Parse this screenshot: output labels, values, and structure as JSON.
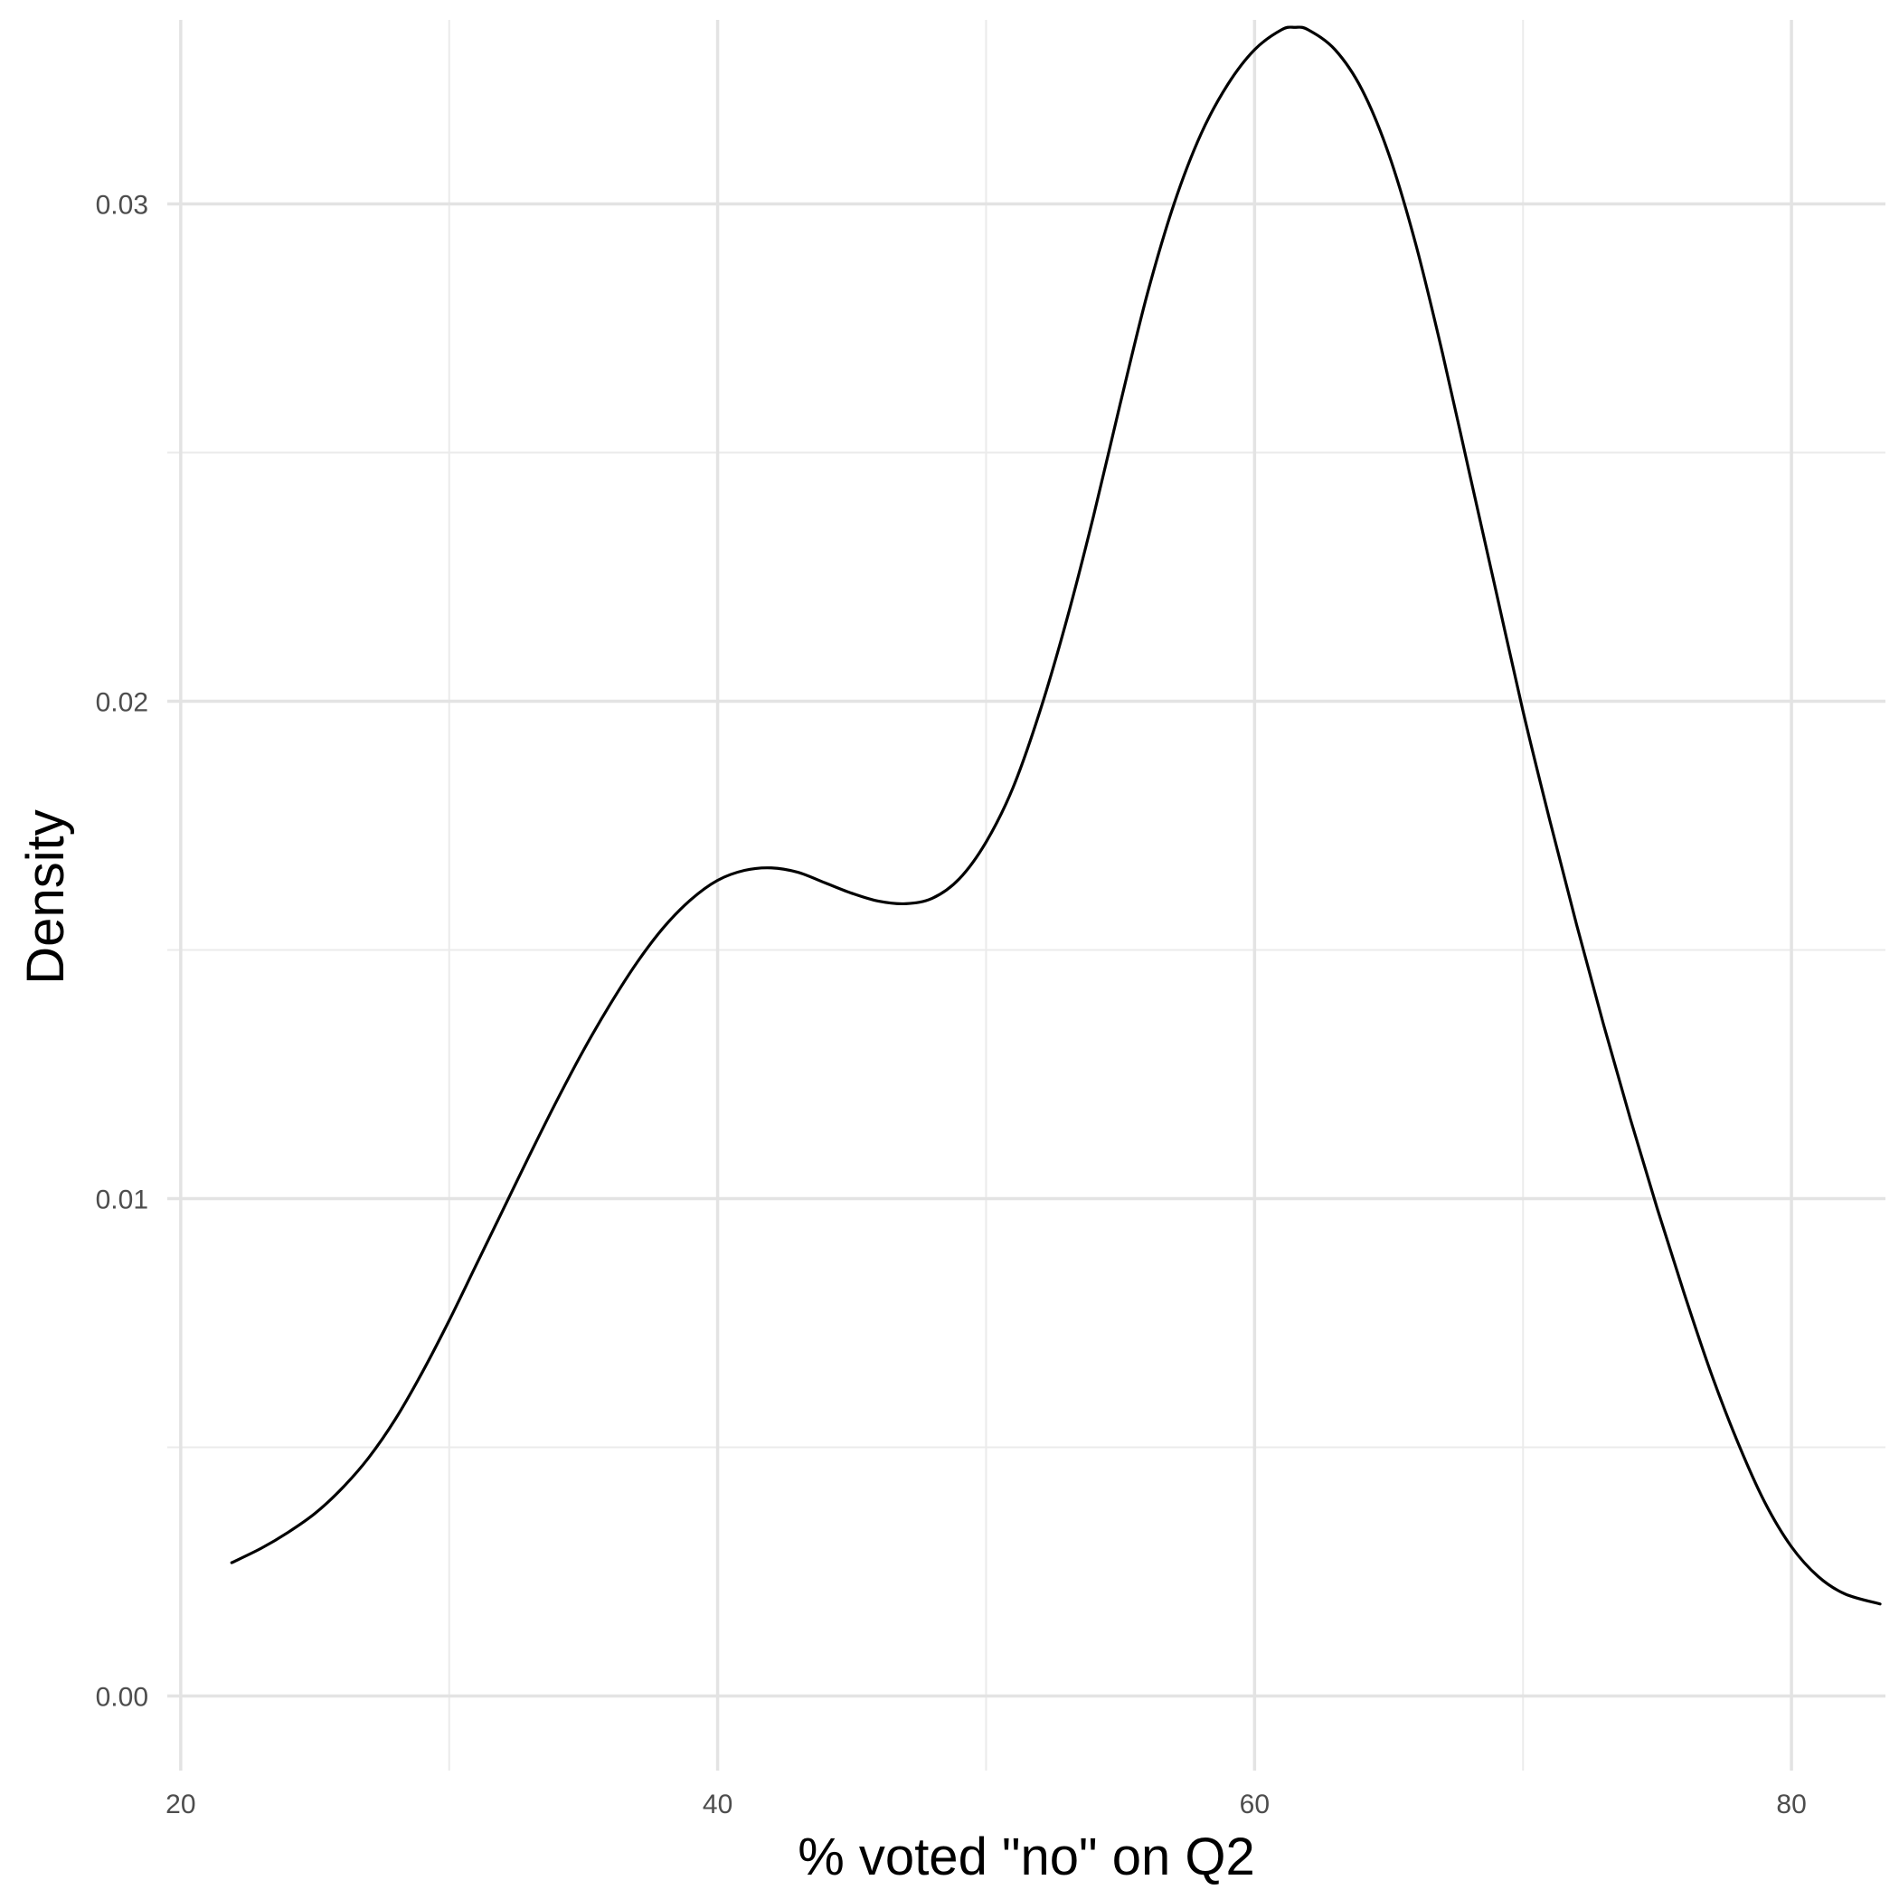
{
  "chart_data": {
    "type": "line",
    "title": "",
    "xlabel": "% voted \"no\" on Q2",
    "ylabel": "Density",
    "xlim": [
      19.5,
      83.5
    ],
    "ylim": [
      -0.0015,
      0.0337
    ],
    "x_ticks": [
      20,
      40,
      60,
      80
    ],
    "x_tick_labels": [
      "20",
      "40",
      "60",
      "80"
    ],
    "x_minor_ticks": [
      30,
      50,
      70
    ],
    "y_ticks": [
      0.0,
      0.01,
      0.02,
      0.03
    ],
    "y_tick_labels": [
      "0.00",
      "0.01",
      "0.02",
      "0.03"
    ],
    "y_minor_ticks": [
      0.005,
      0.015,
      0.025
    ],
    "grid": true,
    "legend": "none",
    "series": [
      {
        "color": "#000000",
        "x": [
          21.9,
          23,
          24,
          25,
          26,
          27,
          28,
          29,
          30,
          31,
          32,
          33,
          34,
          35,
          36,
          37,
          38,
          39,
          40,
          41,
          42,
          43,
          44,
          45,
          46,
          47,
          48,
          49,
          50,
          51,
          52,
          53,
          54,
          55,
          56,
          57,
          58,
          59,
          60,
          61,
          61.5,
          62,
          63,
          64,
          65,
          66,
          67,
          68,
          69,
          70,
          71,
          72,
          73,
          74,
          75,
          76,
          77,
          78,
          79,
          80,
          81,
          82,
          83.3
        ],
        "y": [
          0.00268,
          0.00297,
          0.00329,
          0.00367,
          0.00417,
          0.00479,
          0.00557,
          0.00651,
          0.00755,
          0.00866,
          0.00977,
          0.01088,
          0.01196,
          0.01298,
          0.01391,
          0.01475,
          0.01546,
          0.01601,
          0.0164,
          0.0166,
          0.01665,
          0.01656,
          0.01635,
          0.01614,
          0.01598,
          0.01593,
          0.01604,
          0.01643,
          0.01717,
          0.01826,
          0.01979,
          0.02163,
          0.02372,
          0.02599,
          0.02818,
          0.03,
          0.0314,
          0.0324,
          0.0331,
          0.0335,
          0.03355,
          0.0335,
          0.0331,
          0.0323,
          0.031,
          0.0292,
          0.027,
          0.0246,
          0.0222,
          0.0198,
          0.0176,
          0.0155,
          0.0135,
          0.0116,
          0.0098,
          0.0081,
          0.0065,
          0.0051,
          0.0039,
          0.003,
          0.0024,
          0.00205,
          0.00185
        ]
      }
    ]
  }
}
